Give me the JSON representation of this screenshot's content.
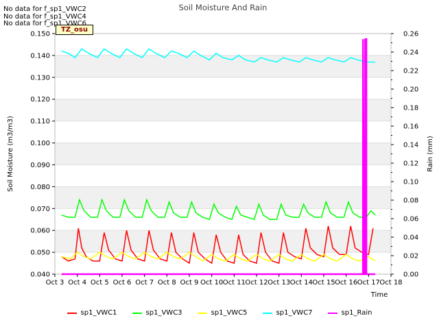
{
  "notes": [
    "No data for f_sp1_VWC2",
    "No data for f_sp1_VWC4",
    "No data for f_sp1_VWC6"
  ],
  "chart_data": {
    "type": "line",
    "title": "Soil Moisture And Rain",
    "xlabel": "Time",
    "ylabel": "Soil Moisture (m3/m3)",
    "ylabel_right": "Rain (mm)",
    "tz_label": "TZ_osu",
    "grid": true,
    "ylim": [
      0.04,
      0.15
    ],
    "ylim_right": [
      0.0,
      0.26
    ],
    "xlim": [
      3,
      18
    ],
    "x_ticks": [
      {
        "value": 3,
        "label": "Oct 3"
      },
      {
        "value": 4,
        "label": "Oct 4"
      },
      {
        "value": 5,
        "label": "Oct 5"
      },
      {
        "value": 6,
        "label": "Oct 6"
      },
      {
        "value": 7,
        "label": "Oct 7"
      },
      {
        "value": 8,
        "label": "Oct 8"
      },
      {
        "value": 9,
        "label": "Oct 9"
      },
      {
        "value": 10,
        "label": "Oct 10"
      },
      {
        "value": 11,
        "label": "Oct 11"
      },
      {
        "value": 12,
        "label": "Oct 12"
      },
      {
        "value": 13,
        "label": "Oct 13"
      },
      {
        "value": 14,
        "label": "Oct 14"
      },
      {
        "value": 15,
        "label": "Oct 15"
      },
      {
        "value": 16,
        "label": "Oct 16"
      },
      {
        "value": 17,
        "label": "Oct 17"
      },
      {
        "value": 18,
        "label": "Oct 18"
      }
    ],
    "y_ticks": [
      "0.040",
      "0.050",
      "0.060",
      "0.070",
      "0.080",
      "0.090",
      "0.100",
      "0.110",
      "0.120",
      "0.130",
      "0.140",
      "0.150"
    ],
    "y_ticks_right": [
      "0.00",
      "0.02",
      "0.04",
      "0.06",
      "0.08",
      "0.10",
      "0.12",
      "0.14",
      "0.16",
      "0.18",
      "0.20",
      "0.22",
      "0.24",
      "0.26"
    ],
    "legend_position": "bottom",
    "series": [
      {
        "name": "sp1_VWC1",
        "color": "#ff0000",
        "axis": "left",
        "x": [
          3.3,
          3.6,
          3.9,
          4.05,
          4.2,
          4.4,
          4.7,
          5.0,
          5.2,
          5.4,
          5.7,
          6.0,
          6.2,
          6.4,
          6.7,
          7.0,
          7.2,
          7.4,
          7.7,
          8.0,
          8.2,
          8.4,
          8.7,
          9.0,
          9.2,
          9.4,
          9.7,
          10.0,
          10.2,
          10.4,
          10.7,
          11.0,
          11.2,
          11.4,
          11.7,
          12.0,
          12.2,
          12.4,
          12.7,
          13.0,
          13.2,
          13.4,
          13.7,
          14.0,
          14.2,
          14.4,
          14.7,
          15.0,
          15.2,
          15.4,
          15.7,
          16.0,
          16.2,
          16.4,
          16.7,
          17.0,
          17.2
        ],
        "y": [
          0.048,
          0.046,
          0.047,
          0.061,
          0.052,
          0.048,
          0.046,
          0.046,
          0.059,
          0.051,
          0.047,
          0.046,
          0.06,
          0.051,
          0.047,
          0.046,
          0.06,
          0.051,
          0.047,
          0.046,
          0.059,
          0.05,
          0.047,
          0.045,
          0.059,
          0.05,
          0.047,
          0.045,
          0.058,
          0.05,
          0.046,
          0.045,
          0.058,
          0.049,
          0.046,
          0.045,
          0.059,
          0.05,
          0.046,
          0.045,
          0.059,
          0.05,
          0.048,
          0.047,
          0.061,
          0.052,
          0.049,
          0.048,
          0.062,
          0.052,
          0.049,
          0.049,
          0.062,
          0.052,
          0.05,
          0.049,
          0.061
        ]
      },
      {
        "name": "sp1_VWC3",
        "color": "#00ff00",
        "axis": "left",
        "x": [
          3.3,
          3.6,
          3.9,
          4.1,
          4.3,
          4.6,
          4.9,
          5.1,
          5.3,
          5.6,
          5.9,
          6.1,
          6.3,
          6.6,
          6.9,
          7.1,
          7.3,
          7.6,
          7.9,
          8.1,
          8.3,
          8.6,
          8.9,
          9.1,
          9.3,
          9.6,
          9.9,
          10.1,
          10.3,
          10.6,
          10.9,
          11.1,
          11.3,
          11.6,
          11.9,
          12.1,
          12.3,
          12.6,
          12.9,
          13.1,
          13.3,
          13.6,
          13.9,
          14.1,
          14.3,
          14.6,
          14.9,
          15.1,
          15.3,
          15.6,
          15.9,
          16.1,
          16.3,
          16.6,
          16.9,
          17.1,
          17.3
        ],
        "y": [
          0.067,
          0.066,
          0.066,
          0.074,
          0.069,
          0.066,
          0.066,
          0.074,
          0.069,
          0.066,
          0.066,
          0.074,
          0.069,
          0.066,
          0.066,
          0.074,
          0.069,
          0.066,
          0.066,
          0.073,
          0.068,
          0.066,
          0.066,
          0.073,
          0.068,
          0.066,
          0.065,
          0.072,
          0.068,
          0.066,
          0.065,
          0.071,
          0.067,
          0.066,
          0.065,
          0.072,
          0.067,
          0.065,
          0.065,
          0.072,
          0.067,
          0.066,
          0.066,
          0.072,
          0.068,
          0.066,
          0.066,
          0.073,
          0.068,
          0.066,
          0.066,
          0.073,
          0.068,
          0.066,
          0.066,
          0.069,
          0.067
        ]
      },
      {
        "name": "sp1_VWC5",
        "color": "#ffff00",
        "axis": "left",
        "x": [
          3.3,
          3.7,
          4.0,
          4.3,
          4.6,
          5.0,
          5.3,
          5.6,
          6.0,
          6.3,
          6.6,
          7.0,
          7.3,
          7.6,
          8.0,
          8.3,
          8.6,
          9.0,
          9.3,
          9.6,
          10.0,
          10.3,
          10.6,
          11.0,
          11.3,
          11.6,
          12.0,
          12.3,
          12.6,
          13.0,
          13.3,
          13.6,
          14.0,
          14.3,
          14.6,
          15.0,
          15.3,
          15.6,
          16.0,
          16.3,
          16.6,
          17.0,
          17.3
        ],
        "y": [
          0.048,
          0.047,
          0.05,
          0.048,
          0.047,
          0.05,
          0.048,
          0.047,
          0.05,
          0.048,
          0.047,
          0.05,
          0.048,
          0.047,
          0.05,
          0.048,
          0.047,
          0.05,
          0.048,
          0.046,
          0.049,
          0.047,
          0.046,
          0.049,
          0.047,
          0.046,
          0.049,
          0.047,
          0.046,
          0.049,
          0.047,
          0.046,
          0.049,
          0.047,
          0.046,
          0.049,
          0.047,
          0.046,
          0.049,
          0.047,
          0.046,
          0.048,
          0.046
        ]
      },
      {
        "name": "sp1_VWC7",
        "color": "#00ffff",
        "axis": "left",
        "x": [
          3.3,
          3.6,
          3.9,
          4.2,
          4.5,
          4.9,
          5.2,
          5.5,
          5.9,
          6.2,
          6.5,
          6.9,
          7.2,
          7.5,
          7.9,
          8.2,
          8.5,
          8.9,
          9.2,
          9.5,
          9.9,
          10.2,
          10.5,
          10.9,
          11.2,
          11.5,
          11.9,
          12.2,
          12.5,
          12.9,
          13.2,
          13.5,
          13.9,
          14.2,
          14.5,
          14.9,
          15.2,
          15.5,
          15.9,
          16.2,
          16.5,
          16.9,
          17.2,
          17.3
        ],
        "y": [
          0.142,
          0.141,
          0.139,
          0.143,
          0.141,
          0.139,
          0.143,
          0.141,
          0.139,
          0.143,
          0.141,
          0.139,
          0.143,
          0.141,
          0.139,
          0.142,
          0.141,
          0.139,
          0.142,
          0.14,
          0.138,
          0.141,
          0.139,
          0.138,
          0.14,
          0.138,
          0.137,
          0.139,
          0.138,
          0.137,
          0.139,
          0.138,
          0.137,
          0.139,
          0.138,
          0.137,
          0.139,
          0.138,
          0.137,
          0.139,
          0.138,
          0.137,
          0.137,
          0.137
        ]
      },
      {
        "name": "sp1_Rain",
        "color": "#ff00ff",
        "axis": "right",
        "x": [
          3.3,
          16.75,
          16.75,
          16.8,
          16.85,
          16.85,
          16.9,
          16.9,
          17.3
        ],
        "y": [
          0.0,
          0.0,
          0.254,
          0.0,
          0.0,
          0.254,
          0.254,
          0.0,
          0.0
        ]
      }
    ]
  }
}
